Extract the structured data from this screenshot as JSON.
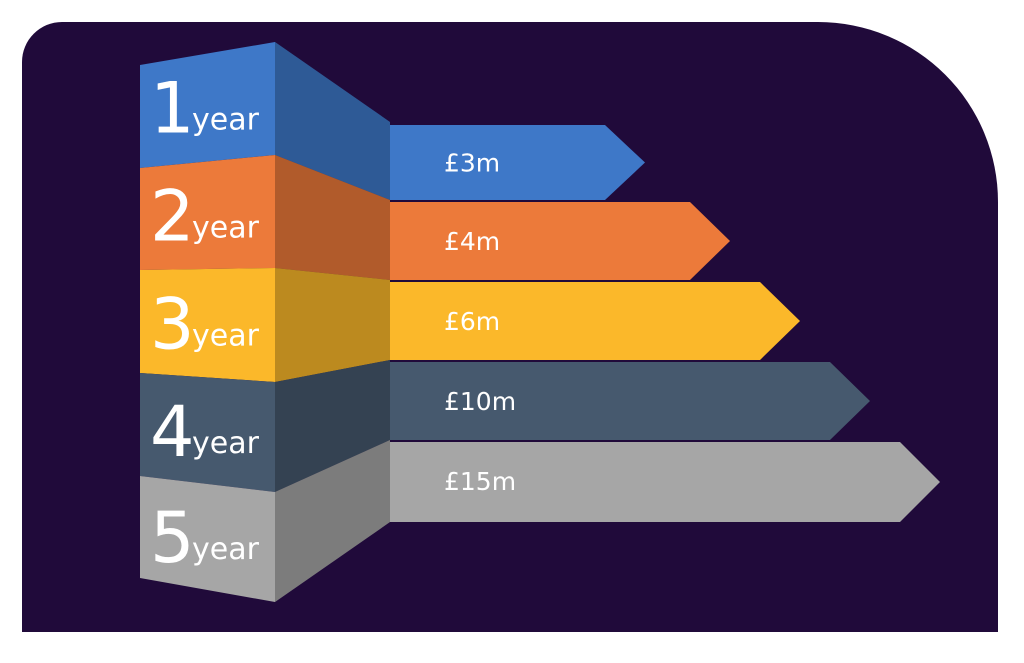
{
  "items": [
    {
      "number": "1",
      "unit": "year",
      "amount": "£3m",
      "color": "#3e78c8"
    },
    {
      "number": "2",
      "unit": "year",
      "amount": "£4m",
      "color": "#ec7a3a"
    },
    {
      "number": "3",
      "unit": "year",
      "amount": "£6m",
      "color": "#fbb82a"
    },
    {
      "number": "4",
      "unit": "year",
      "amount": "£10m",
      "color": "#46596e"
    },
    {
      "number": "5",
      "unit": "year",
      "amount": "£15m",
      "color": "#a6a6a6"
    }
  ]
}
